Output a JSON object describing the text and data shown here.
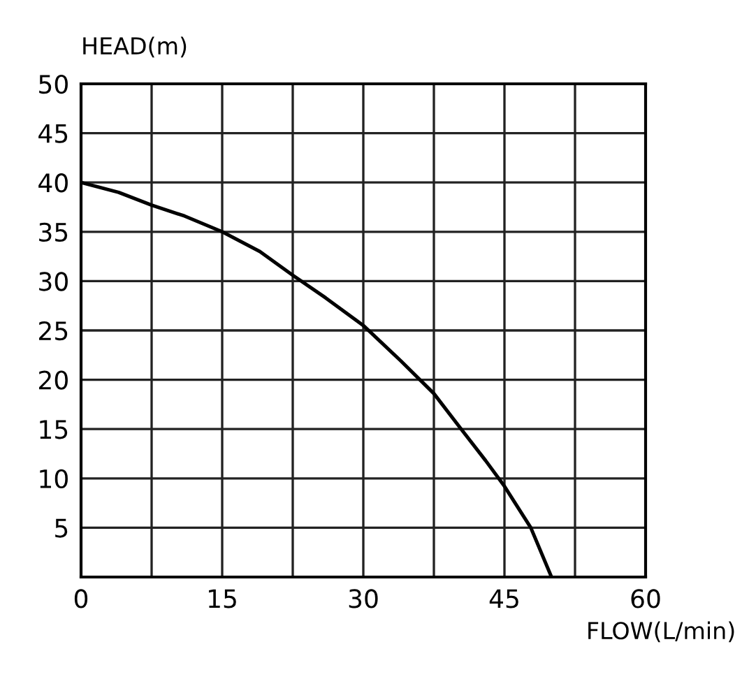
{
  "chart_data": {
    "type": "line",
    "xlabel": "FLOW(L/min)",
    "ylabel": "HEAD(m)",
    "x": [
      0,
      4,
      7.5,
      11,
      15,
      19,
      22.5,
      26,
      30,
      34,
      37.5,
      40.4,
      43,
      45,
      47.8,
      50
    ],
    "series": [
      {
        "color": "#000000",
        "values": [
          40,
          39,
          37.7,
          36.6,
          35,
          33,
          30.6,
          28.3,
          25.5,
          21.9,
          18.6,
          15,
          11.8,
          9.2,
          5,
          0
        ]
      }
    ],
    "xlim": [
      0,
      60
    ],
    "ylim": [
      0,
      50
    ],
    "xticks": [
      0,
      {
        "value": 7.5,
        "label": null
      },
      15,
      {
        "value": 22.5,
        "label": null
      },
      30,
      {
        "value": 37.5,
        "label": null
      },
      45,
      {
        "value": 52.5,
        "label": null
      },
      60
    ],
    "yticks": [
      {
        "value": 0,
        "label": null
      },
      5,
      10,
      15,
      20,
      25,
      30,
      35,
      40,
      45,
      50
    ],
    "grid": true,
    "marker": "none",
    "line_style": "solid",
    "legend": false
  }
}
